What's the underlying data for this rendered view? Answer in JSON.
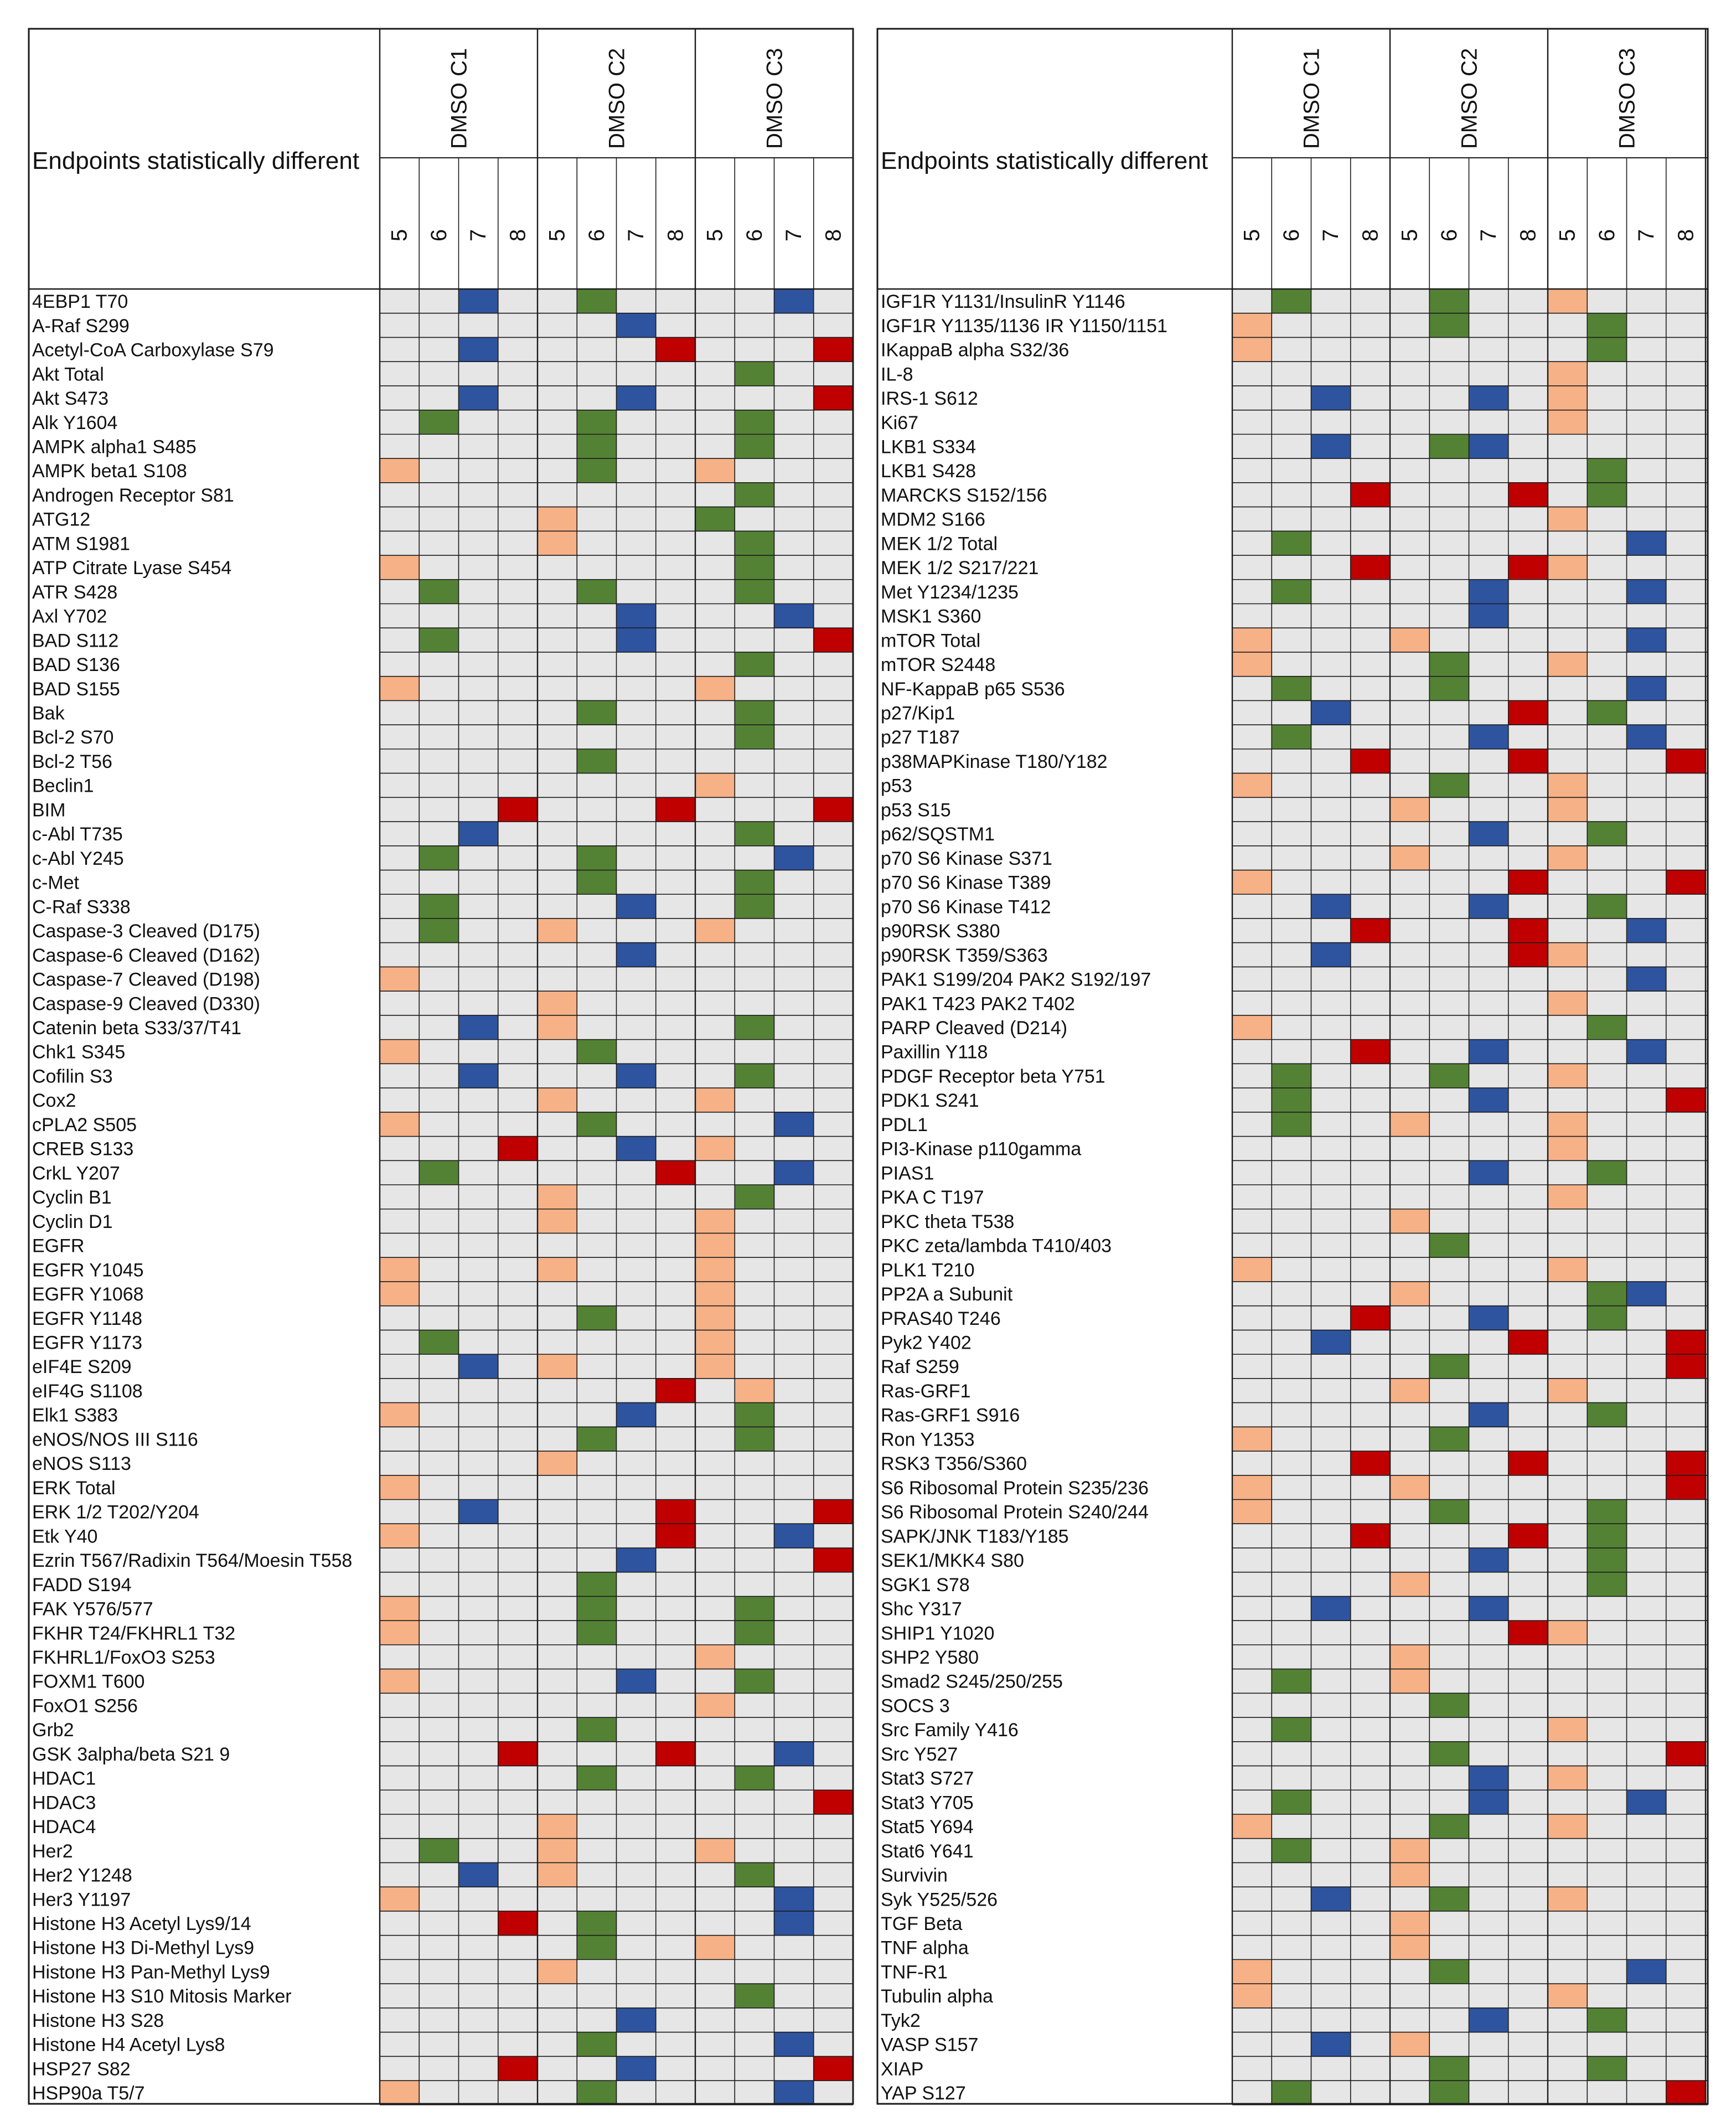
{
  "colors": {
    "background": "#e6e6e6",
    "orange": "#f7b187",
    "green": "#548235",
    "blue": "#2e54a0",
    "red": "#c00000",
    "grid": "#1a1a1a"
  },
  "chart_data": [
    {
      "type": "heatmap",
      "header": "Endpoints statistically different",
      "groups": [
        "DMSO C1",
        "DMSO C2",
        "DMSO C3"
      ],
      "subcolumns": [
        "5",
        "6",
        "7",
        "8"
      ],
      "cell_codes": {
        "o": "orange",
        "g": "green",
        "b": "blue",
        "r": "red"
      },
      "rows": [
        {
          "label": "4EBP1 T70",
          "cells": "..b..g....b."
        },
        {
          "label": "A-Raf S299",
          "cells": "......b....."
        },
        {
          "label": "Acetyl-CoA Carboxylase S79",
          "cells": "..b....r...r"
        },
        {
          "label": "Akt Total",
          "cells": ".........g.."
        },
        {
          "label": "Akt S473",
          "cells": "..b...b....r"
        },
        {
          "label": "Alk Y1604",
          "cells": ".g...g...g.."
        },
        {
          "label": "AMPK alpha1 S485",
          "cells": ".....g...g.."
        },
        {
          "label": "AMPK beta1 S108",
          "cells": "o....g..o..."
        },
        {
          "label": "Androgen Receptor S81",
          "cells": ".........g.."
        },
        {
          "label": "ATG12",
          "cells": "....o...g..."
        },
        {
          "label": "ATM S1981",
          "cells": "....o....g.."
        },
        {
          "label": "ATP Citrate Lyase S454",
          "cells": "o........g.."
        },
        {
          "label": "ATR S428",
          "cells": ".g...g...g.."
        },
        {
          "label": "Axl Y702",
          "cells": "......b...b."
        },
        {
          "label": "BAD S112",
          "cells": ".g....b....r"
        },
        {
          "label": "BAD S136",
          "cells": ".........g.."
        },
        {
          "label": "BAD S155",
          "cells": "o.......o..."
        },
        {
          "label": "Bak",
          "cells": ".....g...g.."
        },
        {
          "label": "Bcl-2 S70",
          "cells": ".........g.."
        },
        {
          "label": "Bcl-2 T56",
          "cells": ".....g......"
        },
        {
          "label": "Beclin1",
          "cells": "........o..."
        },
        {
          "label": "BIM",
          "cells": "...r...r...r"
        },
        {
          "label": "c-Abl T735",
          "cells": "..b......g.."
        },
        {
          "label": "c-Abl Y245",
          "cells": ".g...g....b."
        },
        {
          "label": "c-Met",
          "cells": ".....g...g.."
        },
        {
          "label": "C-Raf S338",
          "cells": ".g....b..g.."
        },
        {
          "label": "Caspase-3 Cleaved (D175)",
          "cells": ".g..o...o..."
        },
        {
          "label": "Caspase-6 Cleaved (D162)",
          "cells": "......b....."
        },
        {
          "label": "Caspase-7 Cleaved (D198)",
          "cells": "o..........."
        },
        {
          "label": "Caspase-9 Cleaved (D330)",
          "cells": "....o......."
        },
        {
          "label": "Catenin beta S33/37/T41",
          "cells": "..b.o....g.."
        },
        {
          "label": "Chk1 S345",
          "cells": "o....g......"
        },
        {
          "label": "Cofilin S3",
          "cells": "..b...b..g.."
        },
        {
          "label": "Cox2",
          "cells": "....o...o..."
        },
        {
          "label": "cPLA2 S505",
          "cells": "o....g....b."
        },
        {
          "label": "CREB S133",
          "cells": "...r..b.o..."
        },
        {
          "label": "CrkL Y207",
          "cells": ".g.....r..b."
        },
        {
          "label": "Cyclin B1",
          "cells": "....o....g.."
        },
        {
          "label": "Cyclin D1",
          "cells": "....o...o..."
        },
        {
          "label": "EGFR",
          "cells": "........o..."
        },
        {
          "label": "EGFR Y1045",
          "cells": "o...o...o..."
        },
        {
          "label": "EGFR Y1068",
          "cells": "o.......o..."
        },
        {
          "label": "EGFR Y1148",
          "cells": ".....g..o..."
        },
        {
          "label": "EGFR Y1173",
          "cells": ".g......o..."
        },
        {
          "label": "eIF4E S209",
          "cells": "..b.o...o..."
        },
        {
          "label": "eIF4G S1108",
          "cells": ".......r.o.."
        },
        {
          "label": "Elk1 S383",
          "cells": "o.....b..g.."
        },
        {
          "label": "eNOS/NOS III S116",
          "cells": ".....g...g.."
        },
        {
          "label": "eNOS S113",
          "cells": "....o......."
        },
        {
          "label": "ERK Total",
          "cells": "o..........."
        },
        {
          "label": "ERK 1/2 T202/Y204",
          "cells": "..b....r...r"
        },
        {
          "label": "Etk Y40",
          "cells": "o......r..b."
        },
        {
          "label": "Ezrin T567/Radixin T564/Moesin T558",
          "cells": "......b....r"
        },
        {
          "label": "FADD S194",
          "cells": ".....g......"
        },
        {
          "label": "FAK Y576/577",
          "cells": "o....g...g.."
        },
        {
          "label": "FKHR T24/FKHRL1 T32",
          "cells": "o....g...g.."
        },
        {
          "label": "FKHRL1/FoxO3 S253",
          "cells": "........o..."
        },
        {
          "label": "FOXM1 T600",
          "cells": "o.....b..g.."
        },
        {
          "label": "FoxO1 S256",
          "cells": "........o..."
        },
        {
          "label": "Grb2",
          "cells": ".....g......"
        },
        {
          "label": "GSK 3alpha/beta S21 9",
          "cells": "...r...r..b."
        },
        {
          "label": "HDAC1",
          "cells": ".....g...g.."
        },
        {
          "label": "HDAC3",
          "cells": "...........r"
        },
        {
          "label": "HDAC4",
          "cells": "....o......."
        },
        {
          "label": "Her2",
          "cells": ".g..o...o..."
        },
        {
          "label": "Her2 Y1248",
          "cells": "..b.o....g.."
        },
        {
          "label": "Her3 Y1197",
          "cells": "o.........b."
        },
        {
          "label": "Histone H3 Acetyl Lys9/14",
          "cells": "...r.g....b."
        },
        {
          "label": "Histone H3 Di-Methyl Lys9",
          "cells": ".....g..o..."
        },
        {
          "label": "Histone H3 Pan-Methyl Lys9",
          "cells": "....o......."
        },
        {
          "label": "Histone H3 S10 Mitosis Marker",
          "cells": ".........g.."
        },
        {
          "label": "Histone H3 S28",
          "cells": "......b....."
        },
        {
          "label": "Histone H4 Acetyl Lys8",
          "cells": ".....g....b."
        },
        {
          "label": "HSP27 S82",
          "cells": "...r..b....r"
        },
        {
          "label": "HSP90a T5/7",
          "cells": "o....g....b."
        }
      ]
    },
    {
      "type": "heatmap",
      "header": "Endpoints statistically different",
      "groups": [
        "DMSO C1",
        "DMSO C2",
        "DMSO C3"
      ],
      "subcolumns": [
        "5",
        "6",
        "7",
        "8"
      ],
      "cell_codes": {
        "o": "orange",
        "g": "green",
        "b": "blue",
        "r": "red"
      },
      "rows": [
        {
          "label": "IGF1R Y1131/InsulinR Y1146",
          "cells": ".g...g..o..."
        },
        {
          "label": "IGF1R Y1135/1136 IR Y1150/1151",
          "cells": "o....g...g.."
        },
        {
          "label": "IKappaB alpha S32/36",
          "cells": "o........g.."
        },
        {
          "label": "IL-8",
          "cells": "........o..."
        },
        {
          "label": "IRS-1 S612",
          "cells": "..b...b.o..."
        },
        {
          "label": "Ki67",
          "cells": "........o..."
        },
        {
          "label": "LKB1 S334",
          "cells": "..b..gb....."
        },
        {
          "label": "LKB1 S428",
          "cells": ".........g.."
        },
        {
          "label": "MARCKS S152/156",
          "cells": "...r...r.g.."
        },
        {
          "label": "MDM2 S166",
          "cells": "........o..."
        },
        {
          "label": "MEK 1/2 Total",
          "cells": ".g........b."
        },
        {
          "label": "MEK 1/2 S217/221",
          "cells": "...r...ro..."
        },
        {
          "label": "Met Y1234/1235",
          "cells": ".g....b...b."
        },
        {
          "label": "MSK1 S360",
          "cells": "......b....."
        },
        {
          "label": "mTOR Total",
          "cells": "o...o.....b."
        },
        {
          "label": "mTOR S2448",
          "cells": "o....g..o..."
        },
        {
          "label": "NF-KappaB p65 S536",
          "cells": ".g...g....b."
        },
        {
          "label": "p27/Kip1",
          "cells": "..b....r.g.."
        },
        {
          "label": "p27 T187",
          "cells": ".g....b...b."
        },
        {
          "label": "p38MAPKinase T180/Y182",
          "cells": "...r...r...r"
        },
        {
          "label": "p53",
          "cells": "o....g..o..."
        },
        {
          "label": "p53 S15",
          "cells": "....o...o..."
        },
        {
          "label": "p62/SQSTM1",
          "cells": "......b..g.."
        },
        {
          "label": "p70 S6 Kinase S371",
          "cells": "....o...o..."
        },
        {
          "label": "p70 S6 Kinase T389",
          "cells": "o......r...r"
        },
        {
          "label": "p70 S6 Kinase T412",
          "cells": "..b...b..g.."
        },
        {
          "label": "p90RSK S380",
          "cells": "...r...r..b."
        },
        {
          "label": "p90RSK T359/S363",
          "cells": "..b....ro..."
        },
        {
          "label": "PAK1 S199/204 PAK2 S192/197",
          "cells": "..........b."
        },
        {
          "label": "PAK1 T423 PAK2 T402",
          "cells": "........o..."
        },
        {
          "label": "PARP Cleaved (D214)",
          "cells": "o........g.."
        },
        {
          "label": "Paxillin Y118",
          "cells": "...r..b...b."
        },
        {
          "label": "PDGF Receptor beta Y751",
          "cells": ".g...g..o..."
        },
        {
          "label": "PDK1 S241",
          "cells": ".g....b....r"
        },
        {
          "label": "PDL1",
          "cells": ".g..o...o..."
        },
        {
          "label": "PI3-Kinase p110gamma",
          "cells": "........o..."
        },
        {
          "label": "PIAS1",
          "cells": "......b..g.."
        },
        {
          "label": "PKA C T197",
          "cells": "........o..."
        },
        {
          "label": "PKC theta T538",
          "cells": "....o......."
        },
        {
          "label": "PKC zeta/lambda T410/403",
          "cells": ".....g......"
        },
        {
          "label": "PLK1 T210",
          "cells": "o.......o..."
        },
        {
          "label": "PP2A a Subunit",
          "cells": "....o....gb."
        },
        {
          "label": "PRAS40 T246",
          "cells": "...r..b..g.."
        },
        {
          "label": "Pyk2 Y402",
          "cells": "..b....r...r"
        },
        {
          "label": "Raf S259",
          "cells": ".....g.....r"
        },
        {
          "label": "Ras-GRF1",
          "cells": "....o...o..."
        },
        {
          "label": "Ras-GRF1 S916",
          "cells": "......b..g.."
        },
        {
          "label": "Ron Y1353",
          "cells": "o....g......"
        },
        {
          "label": "RSK3 T356/S360",
          "cells": "...r...r...r"
        },
        {
          "label": "S6 Ribosomal Protein S235/236",
          "cells": "o...o......r"
        },
        {
          "label": "S6 Ribosomal Protein S240/244",
          "cells": "o....g...g.."
        },
        {
          "label": "SAPK/JNK T183/Y185",
          "cells": "...r...r.g.."
        },
        {
          "label": "SEK1/MKK4 S80",
          "cells": "......b..g.."
        },
        {
          "label": "SGK1 S78",
          "cells": "....o....g.."
        },
        {
          "label": "Shc Y317",
          "cells": "..b...b....."
        },
        {
          "label": "SHIP1 Y1020",
          "cells": ".......ro..."
        },
        {
          "label": "SHP2 Y580",
          "cells": "....o......."
        },
        {
          "label": "Smad2 S245/250/255",
          "cells": ".g..o......."
        },
        {
          "label": "SOCS 3",
          "cells": ".....g......"
        },
        {
          "label": "Src Family Y416",
          "cells": ".g......o..."
        },
        {
          "label": "Src Y527",
          "cells": ".....g.....r"
        },
        {
          "label": "Stat3 S727",
          "cells": "......b.o..."
        },
        {
          "label": "Stat3 Y705",
          "cells": ".g....b...b."
        },
        {
          "label": "Stat5 Y694",
          "cells": "o....g..o..."
        },
        {
          "label": "Stat6 Y641",
          "cells": ".g..o......."
        },
        {
          "label": "Survivin",
          "cells": "....o......."
        },
        {
          "label": "Syk Y525/526",
          "cells": "..b..g..o..."
        },
        {
          "label": "TGF Beta",
          "cells": "....o......."
        },
        {
          "label": "TNF alpha",
          "cells": "....o......."
        },
        {
          "label": "TNF-R1",
          "cells": "o....g....b."
        },
        {
          "label": "Tubulin alpha",
          "cells": "o.......o..."
        },
        {
          "label": "Tyk2",
          "cells": "......b..g.."
        },
        {
          "label": "VASP S157",
          "cells": "..b.o......."
        },
        {
          "label": "XIAP",
          "cells": ".....g...g.."
        },
        {
          "label": "YAP S127",
          "cells": ".g...g.....r"
        }
      ]
    }
  ]
}
